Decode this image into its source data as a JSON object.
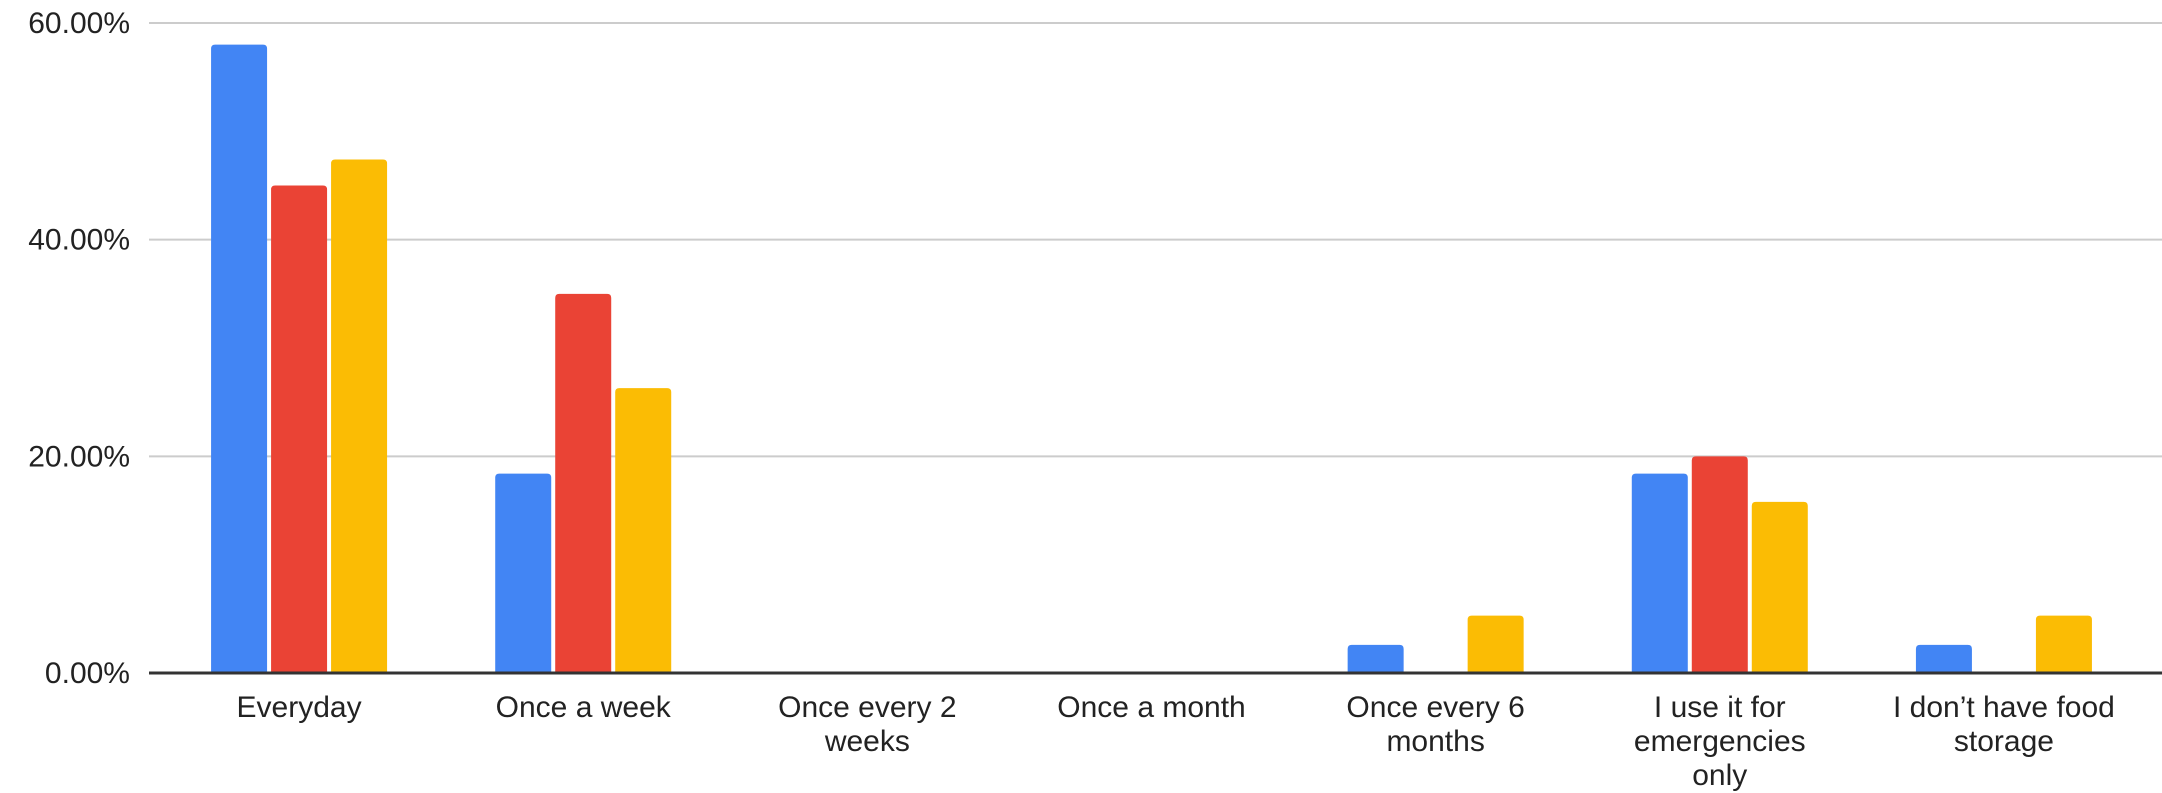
{
  "chart_data": {
    "type": "bar",
    "categories": [
      [
        "Everyday"
      ],
      [
        "Once a week"
      ],
      [
        "Once every 2",
        "weeks"
      ],
      [
        "Once a month"
      ],
      [
        "Once every 6",
        "months"
      ],
      [
        "I use it for",
        "emergencies",
        "only"
      ],
      [
        "I don’t have food",
        "storage"
      ]
    ],
    "series": [
      {
        "color": "#4285f4",
        "values": [
          58.0,
          18.4,
          0,
          0,
          2.6,
          18.4,
          2.6
        ]
      },
      {
        "color": "#ea4335",
        "values": [
          45.0,
          35.0,
          0,
          0,
          0,
          20.0,
          0
        ]
      },
      {
        "color": "#fbbc04",
        "values": [
          47.4,
          26.3,
          0,
          0,
          5.3,
          15.8,
          5.3
        ]
      }
    ],
    "y_ticks": [
      {
        "value": 0,
        "label": "0.00%"
      },
      {
        "value": 20,
        "label": "20.00%"
      },
      {
        "value": 40,
        "label": "40.00%"
      },
      {
        "value": 60,
        "label": "60.00%"
      }
    ],
    "ylim": [
      0,
      60
    ],
    "grid": true,
    "legend": "none",
    "title": "",
    "xlabel": "",
    "ylabel": ""
  }
}
